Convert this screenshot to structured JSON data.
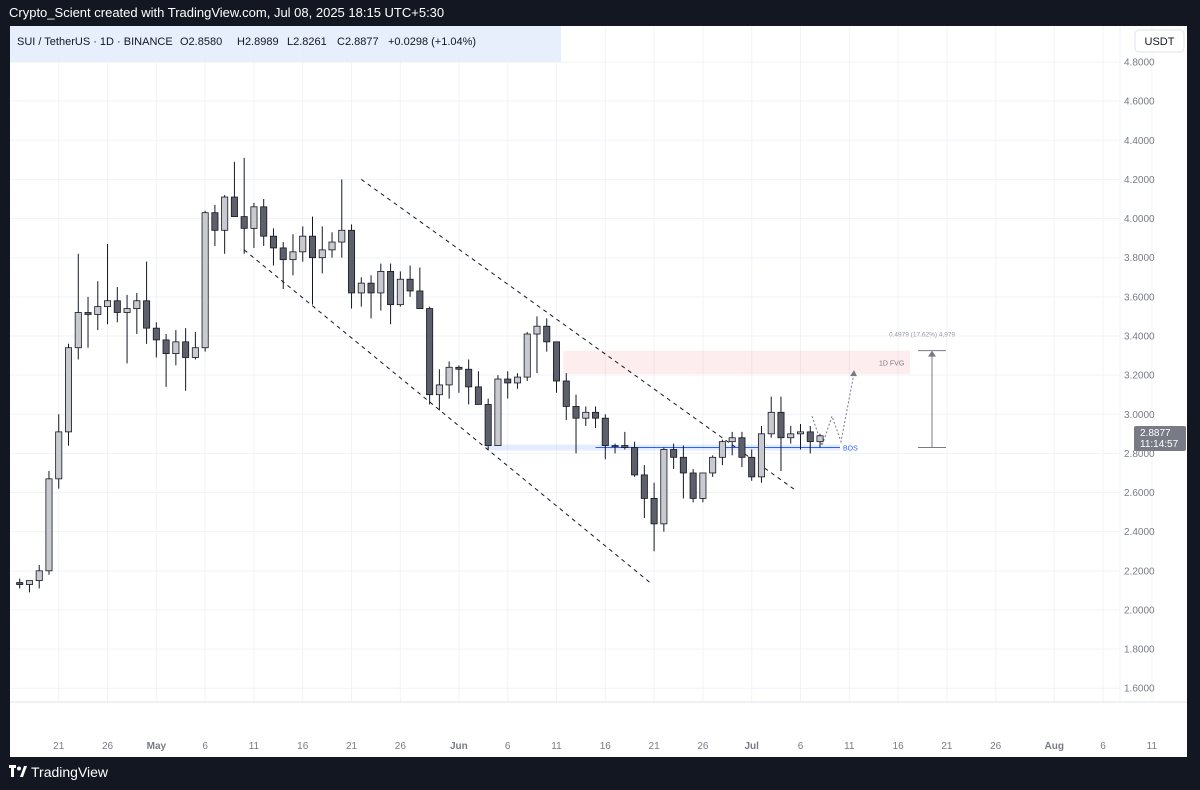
{
  "attribution": "Crypto_Scient created with TradingView.com, Jul 08, 2025 18:15 UTC+5:30",
  "brand": "TradingView",
  "legend": {
    "symbol": "SUI / TetherUS · 1D · BINANCE",
    "open": "O2.8580",
    "high": "H2.8989",
    "low": "L2.8261",
    "close": "C2.8877",
    "change": "+0.0298 (+1.04%)"
  },
  "currency_button": "USDT",
  "price_label": {
    "value": "2.8877",
    "countdown": "11:14:57"
  },
  "colors": {
    "down": "#5d606b",
    "up": "#c9cacf",
    "fvg": "#f23645",
    "bos": "#2962ff",
    "background": "#ffffff",
    "frame": "#131722"
  },
  "chart_data": {
    "type": "candlestick",
    "interval": "1D",
    "ylim": [
      1.5,
      4.84
    ],
    "y_ticks": [
      "1.6000",
      "1.8000",
      "2.0000",
      "2.2000",
      "2.4000",
      "2.6000",
      "2.8000",
      "3.0000",
      "3.2000",
      "3.4000",
      "3.6000",
      "3.8000",
      "4.0000",
      "4.2000",
      "4.4000",
      "4.6000",
      "4.8000"
    ],
    "x_ticks": [
      "21",
      "26",
      "May",
      "6",
      "11",
      "16",
      "21",
      "26",
      "Jun",
      "6",
      "11",
      "16",
      "21",
      "26",
      "Jul",
      "6",
      "11",
      "16",
      "21",
      "26",
      "Aug",
      "6",
      "11"
    ],
    "start_date": "2025-04-17",
    "candles": [
      [
        2.14,
        2.16,
        2.11,
        2.13
      ],
      [
        2.13,
        2.15,
        2.09,
        2.15
      ],
      [
        2.15,
        2.23,
        2.11,
        2.2
      ],
      [
        2.2,
        2.71,
        2.18,
        2.67
      ],
      [
        2.67,
        3.0,
        2.62,
        2.91
      ],
      [
        2.91,
        3.36,
        2.84,
        3.34
      ],
      [
        3.34,
        3.82,
        3.28,
        3.52
      ],
      [
        3.52,
        3.6,
        3.34,
        3.51
      ],
      [
        3.51,
        3.68,
        3.43,
        3.55
      ],
      [
        3.55,
        3.87,
        3.46,
        3.58
      ],
      [
        3.58,
        3.65,
        3.47,
        3.52
      ],
      [
        3.52,
        3.61,
        3.26,
        3.54
      ],
      [
        3.54,
        3.62,
        3.41,
        3.58
      ],
      [
        3.58,
        3.78,
        3.36,
        3.44
      ],
      [
        3.44,
        3.47,
        3.29,
        3.38
      ],
      [
        3.38,
        3.41,
        3.14,
        3.31
      ],
      [
        3.31,
        3.43,
        3.25,
        3.37
      ],
      [
        3.37,
        3.44,
        3.12,
        3.29
      ],
      [
        3.29,
        3.42,
        3.28,
        3.34
      ],
      [
        3.34,
        4.04,
        3.32,
        4.03
      ],
      [
        4.03,
        4.07,
        3.86,
        3.94
      ],
      [
        3.94,
        4.12,
        3.82,
        4.11
      ],
      [
        4.11,
        4.29,
        4.02,
        4.01
      ],
      [
        4.01,
        4.31,
        3.82,
        3.95
      ],
      [
        3.95,
        4.08,
        3.85,
        4.06
      ],
      [
        4.06,
        4.1,
        3.86,
        3.91
      ],
      [
        3.91,
        3.95,
        3.76,
        3.85
      ],
      [
        3.85,
        3.88,
        3.64,
        3.79
      ],
      [
        3.79,
        3.92,
        3.71,
        3.83
      ],
      [
        3.83,
        3.96,
        3.78,
        3.91
      ],
      [
        3.91,
        4.01,
        3.56,
        3.8
      ],
      [
        3.8,
        3.96,
        3.72,
        3.84
      ],
      [
        3.84,
        3.93,
        3.8,
        3.88
      ],
      [
        3.88,
        4.2,
        3.8,
        3.94
      ],
      [
        3.94,
        3.97,
        3.54,
        3.62
      ],
      [
        3.62,
        3.7,
        3.55,
        3.67
      ],
      [
        3.67,
        3.71,
        3.49,
        3.62
      ],
      [
        3.62,
        3.77,
        3.53,
        3.73
      ],
      [
        3.73,
        3.77,
        3.46,
        3.56
      ],
      [
        3.56,
        3.73,
        3.55,
        3.69
      ],
      [
        3.69,
        3.76,
        3.6,
        3.63
      ],
      [
        3.63,
        3.75,
        3.55,
        3.54
      ],
      [
        3.54,
        3.55,
        3.05,
        3.1
      ],
      [
        3.1,
        3.23,
        3.02,
        3.15
      ],
      [
        3.15,
        3.27,
        3.08,
        3.24
      ],
      [
        3.24,
        3.25,
        3.11,
        3.23
      ],
      [
        3.23,
        3.28,
        3.05,
        3.14
      ],
      [
        3.14,
        3.22,
        3.05,
        3.05
      ],
      [
        3.05,
        3.08,
        2.82,
        2.84
      ],
      [
        2.84,
        3.2,
        2.84,
        3.18
      ],
      [
        3.18,
        3.22,
        3.08,
        3.16
      ],
      [
        3.16,
        3.21,
        3.13,
        3.19
      ],
      [
        3.19,
        3.42,
        3.17,
        3.41
      ],
      [
        3.41,
        3.5,
        3.21,
        3.45
      ],
      [
        3.45,
        3.49,
        3.32,
        3.37
      ],
      [
        3.37,
        3.37,
        3.11,
        3.17
      ],
      [
        3.17,
        3.21,
        2.97,
        3.04
      ],
      [
        3.04,
        3.1,
        2.8,
        2.98
      ],
      [
        2.98,
        3.04,
        2.94,
        3.01
      ],
      [
        3.01,
        3.04,
        2.93,
        2.98
      ],
      [
        2.98,
        3.0,
        2.77,
        2.84
      ],
      [
        2.84,
        2.85,
        2.8,
        2.84
      ],
      [
        2.84,
        2.91,
        2.82,
        2.83
      ],
      [
        2.83,
        2.86,
        2.68,
        2.69
      ],
      [
        2.69,
        2.74,
        2.47,
        2.57
      ],
      [
        2.57,
        2.65,
        2.3,
        2.44
      ],
      [
        2.44,
        2.83,
        2.4,
        2.82
      ],
      [
        2.82,
        2.85,
        2.72,
        2.78
      ],
      [
        2.78,
        2.84,
        2.57,
        2.7
      ],
      [
        2.7,
        2.72,
        2.55,
        2.57
      ],
      [
        2.57,
        2.7,
        2.55,
        2.7
      ],
      [
        2.7,
        2.79,
        2.68,
        2.78
      ],
      [
        2.78,
        2.87,
        2.74,
        2.86
      ],
      [
        2.86,
        2.91,
        2.79,
        2.88
      ],
      [
        2.88,
        2.91,
        2.73,
        2.78
      ],
      [
        2.78,
        2.82,
        2.66,
        2.68
      ],
      [
        2.68,
        2.94,
        2.65,
        2.9
      ],
      [
        2.9,
        3.09,
        2.88,
        3.01
      ],
      [
        3.01,
        3.09,
        2.71,
        2.88
      ],
      [
        2.88,
        2.94,
        2.85,
        2.9
      ],
      [
        2.9,
        2.95,
        2.82,
        2.91
      ],
      [
        2.91,
        2.94,
        2.8,
        2.86
      ],
      [
        2.86,
        2.9,
        2.83,
        2.89
      ]
    ]
  },
  "annotations": {
    "fvg_label": "1D FVG",
    "bos_label": "BOS",
    "measure_label": "0.4979 (17.62%) 4,979"
  }
}
